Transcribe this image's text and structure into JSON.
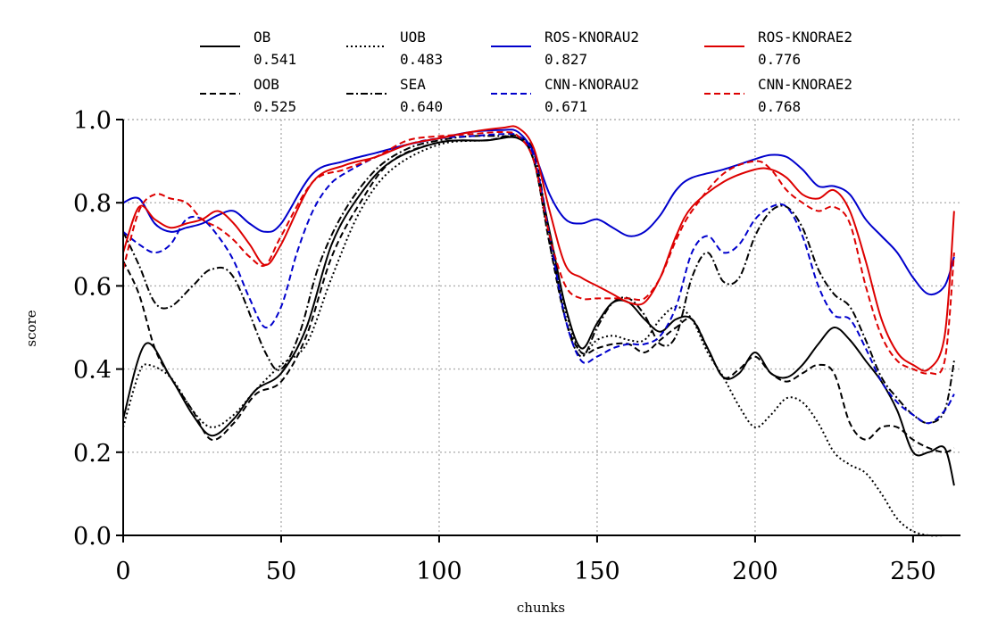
{
  "chart_data": {
    "type": "line",
    "xlabel": "chunks",
    "ylabel": "score",
    "xlim": [
      0,
      265
    ],
    "ylim": [
      0.0,
      1.0
    ],
    "xticks": [
      0,
      50,
      100,
      150,
      200,
      250
    ],
    "xtick_labels": [
      "0",
      "50",
      "100",
      "150",
      "200",
      "250"
    ],
    "yticks": [
      0.0,
      0.2,
      0.4,
      0.6,
      0.8,
      1.0
    ],
    "ytick_labels": [
      "0.0",
      "0.2",
      "0.4",
      "0.6",
      "0.8",
      "1.0"
    ],
    "grid": true,
    "legend_position": "top",
    "legend_columns": 4,
    "series": [
      {
        "name": "OB",
        "score": "0.541",
        "color": "#000000",
        "style": "solid",
        "x": [
          0,
          7,
          15,
          22,
          28,
          35,
          42,
          50,
          58,
          66,
          75,
          85,
          100,
          115,
          125,
          130,
          135,
          140,
          145,
          150,
          155,
          160,
          165,
          170,
          175,
          180,
          185,
          190,
          195,
          200,
          205,
          210,
          215,
          220,
          225,
          230,
          235,
          240,
          245,
          250,
          255,
          260,
          263
        ],
        "y": [
          0.28,
          0.46,
          0.38,
          0.29,
          0.24,
          0.28,
          0.35,
          0.39,
          0.5,
          0.7,
          0.82,
          0.9,
          0.945,
          0.95,
          0.955,
          0.9,
          0.73,
          0.55,
          0.45,
          0.51,
          0.56,
          0.56,
          0.52,
          0.49,
          0.52,
          0.52,
          0.45,
          0.38,
          0.39,
          0.44,
          0.39,
          0.38,
          0.41,
          0.46,
          0.5,
          0.47,
          0.42,
          0.37,
          0.3,
          0.2,
          0.2,
          0.21,
          0.12
        ]
      },
      {
        "name": "OOB",
        "score": "0.525",
        "color": "#000000",
        "style": "dashed",
        "x": [
          0,
          5,
          10,
          15,
          22,
          28,
          35,
          42,
          50,
          58,
          66,
          75,
          85,
          100,
          115,
          125,
          130,
          135,
          140,
          145,
          150,
          155,
          160,
          165,
          170,
          175,
          180,
          185,
          190,
          195,
          200,
          205,
          210,
          215,
          220,
          225,
          230,
          235,
          240,
          245,
          250,
          255,
          260,
          263
        ],
        "y": [
          0.66,
          0.58,
          0.45,
          0.38,
          0.3,
          0.23,
          0.27,
          0.34,
          0.37,
          0.48,
          0.67,
          0.8,
          0.9,
          0.945,
          0.95,
          0.96,
          0.9,
          0.7,
          0.52,
          0.44,
          0.45,
          0.46,
          0.46,
          0.44,
          0.47,
          0.5,
          0.52,
          0.45,
          0.38,
          0.4,
          0.43,
          0.39,
          0.37,
          0.39,
          0.41,
          0.39,
          0.27,
          0.23,
          0.26,
          0.26,
          0.23,
          0.21,
          0.2,
          0.21
        ]
      },
      {
        "name": "UOB",
        "score": "0.483",
        "color": "#000000",
        "style": "dotted",
        "x": [
          0,
          5,
          8,
          15,
          22,
          28,
          35,
          42,
          50,
          58,
          66,
          75,
          85,
          100,
          115,
          125,
          130,
          135,
          140,
          145,
          150,
          155,
          160,
          165,
          170,
          175,
          180,
          185,
          190,
          195,
          200,
          205,
          210,
          215,
          220,
          225,
          230,
          235,
          240,
          245,
          250,
          255,
          260,
          263
        ],
        "y": [
          0.26,
          0.39,
          0.41,
          0.38,
          0.3,
          0.26,
          0.29,
          0.35,
          0.41,
          0.46,
          0.62,
          0.78,
          0.88,
          0.94,
          0.95,
          0.955,
          0.9,
          0.7,
          0.54,
          0.44,
          0.47,
          0.48,
          0.47,
          0.47,
          0.52,
          0.55,
          0.52,
          0.44,
          0.38,
          0.31,
          0.26,
          0.29,
          0.33,
          0.32,
          0.27,
          0.2,
          0.17,
          0.15,
          0.1,
          0.04,
          0.01,
          0.0,
          0.0,
          0.0
        ]
      },
      {
        "name": "SEA",
        "score": "0.640",
        "color": "#000000",
        "style": "dashdot",
        "x": [
          0,
          5,
          10,
          15,
          22,
          28,
          35,
          45,
          50,
          56,
          62,
          70,
          80,
          90,
          100,
          110,
          120,
          125,
          130,
          135,
          140,
          145,
          150,
          155,
          160,
          165,
          170,
          175,
          180,
          185,
          190,
          195,
          200,
          205,
          210,
          215,
          220,
          225,
          230,
          235,
          240,
          245,
          250,
          255,
          260,
          263
        ],
        "y": [
          0.73,
          0.65,
          0.56,
          0.55,
          0.6,
          0.64,
          0.62,
          0.44,
          0.4,
          0.49,
          0.65,
          0.78,
          0.88,
          0.93,
          0.95,
          0.96,
          0.96,
          0.955,
          0.92,
          0.72,
          0.52,
          0.43,
          0.5,
          0.56,
          0.57,
          0.53,
          0.46,
          0.48,
          0.62,
          0.68,
          0.61,
          0.62,
          0.72,
          0.78,
          0.79,
          0.74,
          0.64,
          0.58,
          0.55,
          0.47,
          0.38,
          0.33,
          0.29,
          0.27,
          0.3,
          0.42
        ]
      },
      {
        "name": "ROS-KNORAU2",
        "score": "0.827",
        "color": "#0000cc",
        "style": "solid",
        "x": [
          0,
          5,
          10,
          15,
          20,
          25,
          30,
          35,
          40,
          45,
          50,
          60,
          70,
          80,
          90,
          100,
          110,
          120,
          125,
          130,
          135,
          140,
          145,
          150,
          155,
          160,
          165,
          170,
          175,
          180,
          190,
          200,
          205,
          210,
          215,
          220,
          225,
          230,
          235,
          240,
          245,
          250,
          255,
          260,
          263
        ],
        "y": [
          0.8,
          0.81,
          0.75,
          0.73,
          0.74,
          0.75,
          0.77,
          0.78,
          0.75,
          0.73,
          0.75,
          0.87,
          0.9,
          0.92,
          0.94,
          0.955,
          0.97,
          0.975,
          0.97,
          0.92,
          0.82,
          0.76,
          0.75,
          0.76,
          0.74,
          0.72,
          0.73,
          0.77,
          0.83,
          0.86,
          0.88,
          0.905,
          0.915,
          0.91,
          0.88,
          0.84,
          0.84,
          0.82,
          0.76,
          0.72,
          0.68,
          0.62,
          0.58,
          0.6,
          0.67
        ]
      },
      {
        "name": "CNN-KNORAU2",
        "score": "0.671",
        "color": "#0000cc",
        "style": "dashed",
        "x": [
          0,
          5,
          10,
          15,
          20,
          25,
          30,
          35,
          40,
          45,
          50,
          55,
          60,
          65,
          70,
          80,
          90,
          100,
          110,
          120,
          125,
          130,
          135,
          140,
          145,
          150,
          155,
          160,
          165,
          170,
          175,
          180,
          185,
          190,
          195,
          200,
          205,
          210,
          215,
          220,
          225,
          230,
          235,
          240,
          245,
          250,
          255,
          260,
          263
        ],
        "y": [
          0.73,
          0.7,
          0.68,
          0.7,
          0.76,
          0.76,
          0.72,
          0.66,
          0.57,
          0.5,
          0.55,
          0.68,
          0.78,
          0.84,
          0.87,
          0.91,
          0.94,
          0.955,
          0.96,
          0.965,
          0.96,
          0.91,
          0.72,
          0.52,
          0.42,
          0.43,
          0.45,
          0.46,
          0.46,
          0.48,
          0.55,
          0.68,
          0.72,
          0.68,
          0.7,
          0.76,
          0.79,
          0.79,
          0.72,
          0.6,
          0.53,
          0.52,
          0.45,
          0.37,
          0.32,
          0.29,
          0.27,
          0.3,
          0.34
        ]
      },
      {
        "name": "ROS-KNORAE2",
        "score": "0.776",
        "color": "#dd0000",
        "style": "solid",
        "x": [
          0,
          5,
          10,
          15,
          20,
          25,
          30,
          35,
          40,
          45,
          50,
          60,
          70,
          80,
          90,
          100,
          110,
          120,
          125,
          130,
          135,
          140,
          145,
          150,
          155,
          160,
          165,
          170,
          175,
          180,
          190,
          200,
          205,
          210,
          215,
          220,
          225,
          230,
          235,
          240,
          245,
          250,
          255,
          260,
          263
        ],
        "y": [
          0.68,
          0.79,
          0.76,
          0.74,
          0.75,
          0.76,
          0.78,
          0.75,
          0.7,
          0.65,
          0.7,
          0.85,
          0.89,
          0.91,
          0.94,
          0.955,
          0.97,
          0.98,
          0.98,
          0.93,
          0.78,
          0.65,
          0.62,
          0.6,
          0.58,
          0.56,
          0.56,
          0.62,
          0.72,
          0.79,
          0.85,
          0.88,
          0.88,
          0.86,
          0.82,
          0.81,
          0.83,
          0.78,
          0.66,
          0.52,
          0.44,
          0.41,
          0.4,
          0.48,
          0.78
        ]
      },
      {
        "name": "CNN-KNORAE2",
        "score": "0.768",
        "color": "#dd0000",
        "style": "dashed",
        "x": [
          0,
          5,
          10,
          15,
          20,
          25,
          30,
          35,
          40,
          45,
          50,
          60,
          70,
          80,
          90,
          100,
          110,
          120,
          125,
          130,
          135,
          140,
          145,
          150,
          155,
          160,
          165,
          170,
          175,
          180,
          190,
          200,
          205,
          210,
          215,
          220,
          225,
          230,
          235,
          240,
          245,
          250,
          255,
          260,
          263
        ],
        "y": [
          0.64,
          0.78,
          0.82,
          0.81,
          0.8,
          0.76,
          0.74,
          0.71,
          0.67,
          0.65,
          0.72,
          0.85,
          0.88,
          0.91,
          0.95,
          0.96,
          0.965,
          0.97,
          0.96,
          0.9,
          0.72,
          0.6,
          0.57,
          0.57,
          0.57,
          0.57,
          0.57,
          0.62,
          0.71,
          0.78,
          0.87,
          0.9,
          0.88,
          0.83,
          0.8,
          0.78,
          0.79,
          0.75,
          0.6,
          0.48,
          0.42,
          0.4,
          0.39,
          0.42,
          0.68
        ]
      }
    ]
  }
}
